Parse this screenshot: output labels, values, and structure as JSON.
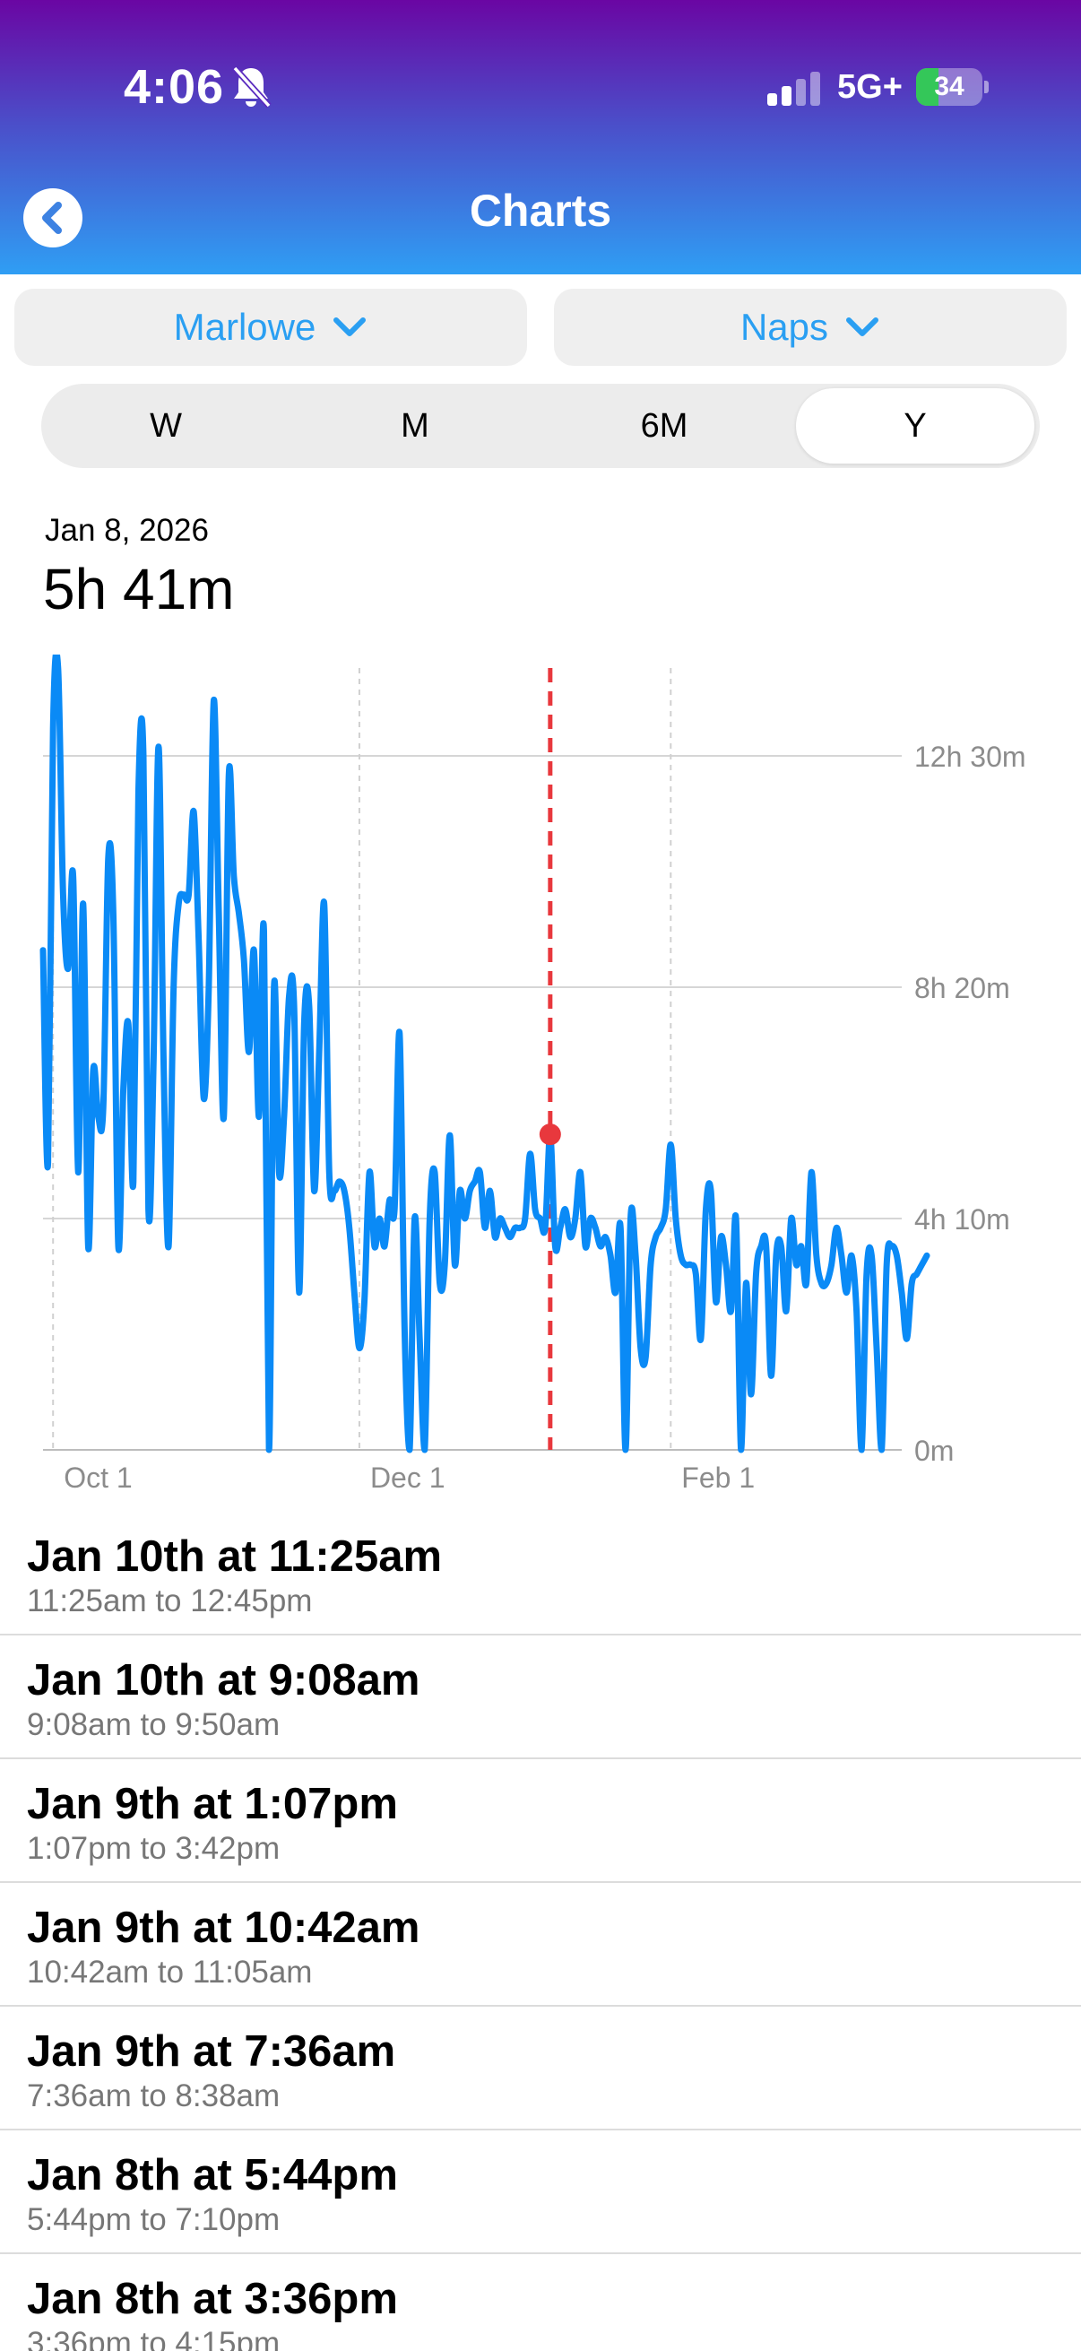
{
  "status_bar": {
    "time": "4:06",
    "network": "5G+",
    "battery_level": 34,
    "battery_label": "34"
  },
  "icons": {
    "bell": "bell-slash-icon",
    "signal": "cellular-signal-icon",
    "back": "chevron-left-icon",
    "dropdown": "chevron-down-icon"
  },
  "header": {
    "title": "Charts"
  },
  "filters": {
    "child": "Marlowe",
    "type": "Naps"
  },
  "ranges": {
    "options": [
      "W",
      "M",
      "6M",
      "Y"
    ],
    "selected": "Y"
  },
  "summary": {
    "date": "Jan 8, 2026",
    "total": "5h 41m"
  },
  "colors": {
    "header_top": "#6a06a3",
    "header_bottom": "#2f9ef4",
    "accent": "#2a9ff2",
    "line": "#0a8af6",
    "selection": "#e8383d",
    "battery": "#34c759"
  },
  "chart_data": {
    "type": "line",
    "x_unit": "days from Sep 29, 2025",
    "x_ticks": [
      {
        "label": "Oct 1",
        "x": 2
      },
      {
        "label": "Dec 1",
        "x": 63
      },
      {
        "label": "Feb 1",
        "x": 125
      }
    ],
    "y_ticks": [
      {
        "label": "0m",
        "minutes": 0
      },
      {
        "label": "4h 10m",
        "minutes": 250
      },
      {
        "label": "8h 20m",
        "minutes": 500
      },
      {
        "label": "12h 30m",
        "minutes": 750
      }
    ],
    "xlim": [
      0,
      171
    ],
    "ylim_minutes": [
      0,
      845
    ],
    "grid": true,
    "selected": {
      "label": "Jan 8, 2026",
      "x": 101,
      "minutes": 341
    },
    "values_minutes": [
      540,
      310,
      780,
      845,
      600,
      520,
      620,
      300,
      590,
      220,
      410,
      360,
      370,
      640,
      580,
      220,
      390,
      460,
      290,
      710,
      750,
      260,
      420,
      760,
      420,
      220,
      500,
      590,
      600,
      600,
      690,
      550,
      380,
      500,
      810,
      580,
      360,
      730,
      620,
      580,
      530,
      430,
      540,
      360,
      560,
      0,
      500,
      300,
      360,
      490,
      480,
      170,
      460,
      480,
      280,
      430,
      590,
      300,
      280,
      290,
      280,
      240,
      170,
      110,
      160,
      300,
      220,
      250,
      220,
      270,
      260,
      450,
      130,
      0,
      250,
      120,
      0,
      250,
      300,
      180,
      200,
      340,
      200,
      280,
      250,
      280,
      290,
      300,
      240,
      280,
      230,
      250,
      240,
      230,
      240,
      240,
      250,
      320,
      260,
      250,
      240,
      341,
      220,
      240,
      260,
      230,
      250,
      300,
      220,
      250,
      240,
      220,
      230,
      210,
      170,
      240,
      0,
      250,
      210,
      110,
      100,
      200,
      230,
      240,
      260,
      330,
      250,
      210,
      200,
      200,
      190,
      120,
      260,
      280,
      160,
      230,
      200,
      150,
      250,
      0,
      180,
      60,
      190,
      220,
      220,
      80,
      210,
      220,
      150,
      250,
      200,
      220,
      180,
      300,
      210,
      180,
      180,
      200,
      240,
      210,
      170,
      210,
      150,
      0,
      190,
      210,
      110,
      0,
      200,
      220,
      210,
      170,
      120,
      180,
      190,
      200,
      210
    ]
  },
  "nap_list": [
    {
      "title": "Jan 10th at 11:25am",
      "range": "11:25am to 12:45pm"
    },
    {
      "title": "Jan 10th at 9:08am",
      "range": "9:08am to 9:50am"
    },
    {
      "title": "Jan 9th at 1:07pm",
      "range": "1:07pm to 3:42pm"
    },
    {
      "title": "Jan 9th at 10:42am",
      "range": "10:42am to 11:05am"
    },
    {
      "title": "Jan 9th at 7:36am",
      "range": "7:36am to 8:38am"
    },
    {
      "title": "Jan 8th at 5:44pm",
      "range": "5:44pm to 7:10pm"
    },
    {
      "title": "Jan 8th at 3:36pm",
      "range": "3:36pm to 4:15pm"
    }
  ]
}
